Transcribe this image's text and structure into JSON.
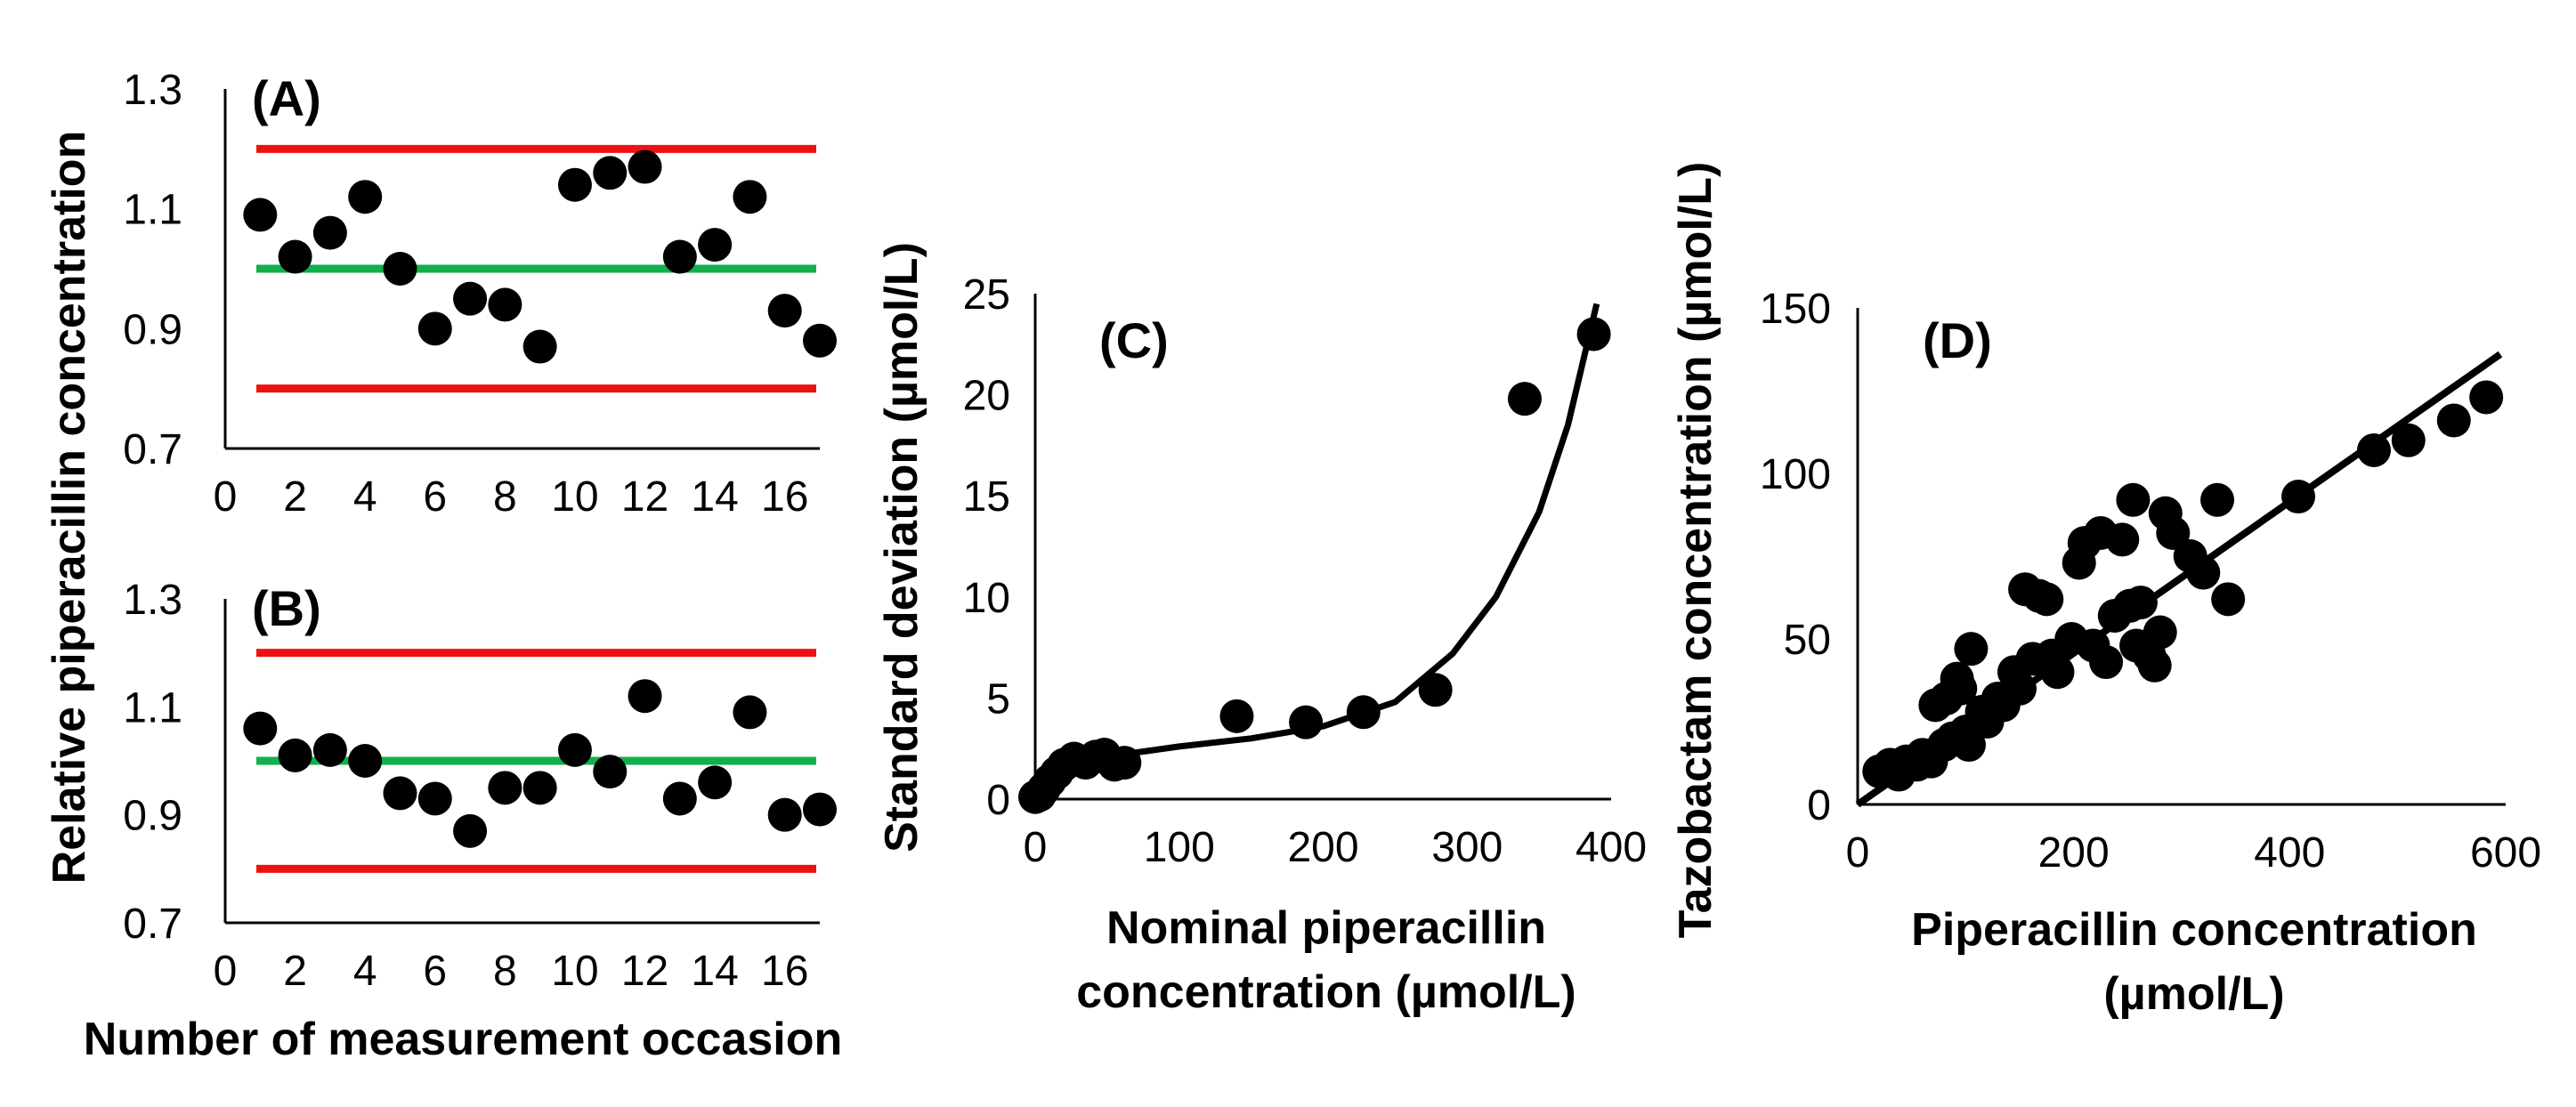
{
  "shared": {
    "ylabel_ab": "Relative piperacillin  concentration",
    "xlabel_ab": "Number of measurement occasion"
  },
  "chart_data": [
    {
      "id": "A",
      "type": "scatter",
      "panel_label": "(A)",
      "xlim": [
        0,
        17
      ],
      "ylim": [
        0.7,
        1.3
      ],
      "xticks": [
        "0",
        "2",
        "4",
        "6",
        "8",
        "10",
        "12",
        "14",
        "16"
      ],
      "yticks": [
        "0.7",
        "0.9",
        "1.1",
        "1.3"
      ],
      "x": [
        1,
        2,
        3,
        4,
        5,
        6,
        7,
        8,
        9,
        10,
        11,
        12,
        13,
        14,
        15,
        16,
        17
      ],
      "y": [
        1.09,
        1.02,
        1.06,
        1.12,
        1.0,
        0.9,
        0.95,
        0.94,
        0.87,
        1.14,
        1.16,
        1.17,
        1.02,
        1.04,
        1.12,
        0.93,
        0.88
      ],
      "reference_lines": [
        {
          "y": 1.2,
          "color": "#ee1111"
        },
        {
          "y": 1.0,
          "color": "#11b04c"
        },
        {
          "y": 0.8,
          "color": "#ee1111"
        }
      ]
    },
    {
      "id": "B",
      "type": "scatter",
      "panel_label": "(B)",
      "xlim": [
        0,
        17
      ],
      "ylim": [
        0.7,
        1.3
      ],
      "xticks": [
        "0",
        "2",
        "4",
        "6",
        "8",
        "10",
        "12",
        "14",
        "16"
      ],
      "yticks": [
        "0.7",
        "0.9",
        "1.1",
        "1.3"
      ],
      "x": [
        1,
        2,
        3,
        4,
        5,
        6,
        7,
        8,
        9,
        10,
        11,
        12,
        13,
        14,
        15,
        16,
        17
      ],
      "y": [
        1.06,
        1.01,
        1.02,
        1.0,
        0.94,
        0.93,
        0.87,
        0.95,
        0.95,
        1.02,
        0.98,
        1.12,
        0.93,
        0.96,
        1.09,
        0.9,
        0.91
      ],
      "reference_lines": [
        {
          "y": 1.2,
          "color": "#ee1111"
        },
        {
          "y": 1.0,
          "color": "#11b04c"
        },
        {
          "y": 0.8,
          "color": "#ee1111"
        }
      ]
    },
    {
      "id": "C",
      "type": "scatter",
      "panel_label": "(C)",
      "xlabel": [
        "Nominal piperacillin",
        "concentration (µmol/L)"
      ],
      "ylabel": "Standard deviation (µmol/L)",
      "xlim": [
        0,
        400
      ],
      "ylim": [
        0,
        25
      ],
      "xticks": [
        "0",
        "100",
        "200",
        "300",
        "400"
      ],
      "yticks": [
        "0",
        "5",
        "10",
        "15",
        "20",
        "25"
      ],
      "points": [
        [
          0,
          0.1
        ],
        [
          3,
          0.2
        ],
        [
          6,
          0.5
        ],
        [
          10,
          0.9
        ],
        [
          15,
          1.3
        ],
        [
          20,
          1.7
        ],
        [
          27,
          2.0
        ],
        [
          35,
          1.8
        ],
        [
          42,
          2.1
        ],
        [
          48,
          2.2
        ],
        [
          55,
          1.7
        ],
        [
          62,
          1.8
        ],
        [
          140,
          4.1
        ],
        [
          188,
          3.8
        ],
        [
          228,
          4.3
        ],
        [
          278,
          5.4
        ],
        [
          340,
          19.8
        ],
        [
          388,
          23.0
        ]
      ],
      "trend_curve": [
        [
          0,
          0.0
        ],
        [
          10,
          0.9
        ],
        [
          30,
          1.7
        ],
        [
          60,
          2.2
        ],
        [
          100,
          2.6
        ],
        [
          150,
          3.0
        ],
        [
          200,
          3.6
        ],
        [
          250,
          4.8
        ],
        [
          290,
          7.2
        ],
        [
          320,
          10.0
        ],
        [
          350,
          14.2
        ],
        [
          370,
          18.5
        ],
        [
          390,
          24.5
        ]
      ]
    },
    {
      "id": "D",
      "type": "scatter",
      "panel_label": "(D)",
      "xlabel": [
        "Piperacillin concentration",
        "(µmol/L)"
      ],
      "ylabel": "Tazobactam  concentration (µmol/L)",
      "xlim": [
        0,
        600
      ],
      "ylim": [
        0,
        150
      ],
      "xticks": [
        "0",
        "200",
        "400",
        "600"
      ],
      "yticks": [
        "0",
        "50",
        "100",
        "150"
      ],
      "points": [
        [
          20,
          10
        ],
        [
          30,
          12
        ],
        [
          38,
          9
        ],
        [
          45,
          13
        ],
        [
          55,
          12
        ],
        [
          60,
          15
        ],
        [
          68,
          13
        ],
        [
          72,
          30
        ],
        [
          80,
          18
        ],
        [
          82,
          32
        ],
        [
          88,
          20
        ],
        [
          92,
          38
        ],
        [
          95,
          35
        ],
        [
          100,
          22
        ],
        [
          103,
          18
        ],
        [
          105,
          47
        ],
        [
          115,
          28
        ],
        [
          120,
          25
        ],
        [
          130,
          32
        ],
        [
          135,
          30
        ],
        [
          145,
          40
        ],
        [
          150,
          35
        ],
        [
          155,
          65
        ],
        [
          162,
          44
        ],
        [
          168,
          63
        ],
        [
          175,
          62
        ],
        [
          180,
          45
        ],
        [
          185,
          40
        ],
        [
          198,
          50
        ],
        [
          205,
          73
        ],
        [
          210,
          79
        ],
        [
          218,
          48
        ],
        [
          225,
          82
        ],
        [
          230,
          43
        ],
        [
          238,
          57
        ],
        [
          245,
          80
        ],
        [
          252,
          60
        ],
        [
          255,
          92
        ],
        [
          258,
          48
        ],
        [
          262,
          61
        ],
        [
          270,
          45
        ],
        [
          275,
          42
        ],
        [
          280,
          52
        ],
        [
          285,
          88
        ],
        [
          292,
          82
        ],
        [
          308,
          75
        ],
        [
          320,
          70
        ],
        [
          333,
          92
        ],
        [
          343,
          62
        ],
        [
          408,
          93
        ],
        [
          478,
          107
        ],
        [
          510,
          110
        ],
        [
          552,
          116
        ],
        [
          582,
          123
        ]
      ],
      "trend_line": [
        [
          0,
          0
        ],
        [
          595,
          136
        ]
      ]
    }
  ]
}
